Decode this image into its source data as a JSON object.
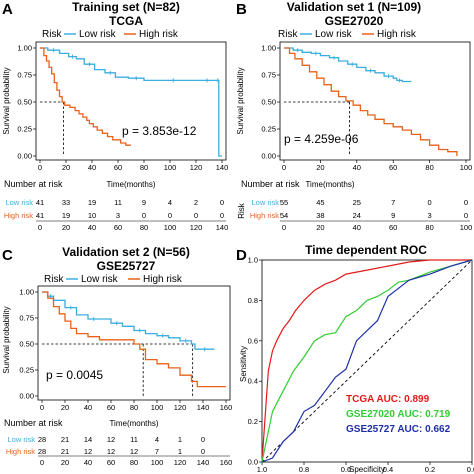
{
  "colors": {
    "low": "#3aaee0",
    "high": "#e8621c",
    "tcga": "#e31a1c",
    "gse27020": "#33cc33",
    "gse25727": "#1f2fa8"
  },
  "panels": [
    {
      "letter": "A",
      "title": "Training set (N=82)",
      "subtitle": "TCGA",
      "legend_title": "Risk",
      "legend_low": "Low risk",
      "legend_high": "High risk",
      "pvalue": "p = 3.853e-12",
      "ylabel": "Survival probability",
      "xlabel": "Time(months)",
      "number_at_risk_label": "Number at risk",
      "risk_row_labels": [
        "Low risk",
        "High risk"
      ],
      "risk_low": [
        "41",
        "33",
        "19",
        "11",
        "9",
        "4",
        "2",
        "0"
      ],
      "risk_high": [
        "41",
        "19",
        "10",
        "3",
        "0",
        "0",
        "0",
        "0"
      ]
    },
    {
      "letter": "B",
      "title": "Validation set 1 (N=109)",
      "subtitle": "GSE27020",
      "legend_title": "Risk",
      "legend_low": "Low risk",
      "legend_high": "High risk",
      "pvalue": "p = 4.259e-06",
      "ylabel": "Survival probability",
      "xlabel": "Time(months)",
      "number_at_risk_label": "Number at risk",
      "risk_axis_label": "Risk",
      "risk_row_labels": [
        "Low risk",
        "High risk"
      ],
      "risk_low": [
        "55",
        "45",
        "25",
        "7",
        "0",
        "0"
      ],
      "risk_high": [
        "54",
        "38",
        "24",
        "9",
        "3",
        "0"
      ]
    },
    {
      "letter": "C",
      "title": "Validation set 2 (N=56)",
      "subtitle": "GSE25727",
      "legend_title": "Risk",
      "legend_low": "Low risk",
      "legend_high": "High risk",
      "pvalue": "p = 0.0045",
      "ylabel": "Survival probability",
      "xlabel": "Time(months)",
      "number_at_risk_label": "Number at risk",
      "risk_row_labels": [
        "Low risk",
        "High risk"
      ],
      "risk_low": [
        "28",
        "21",
        "14",
        "12",
        "11",
        "4",
        "1",
        "0"
      ],
      "risk_high": [
        "28",
        "21",
        "12",
        "12",
        "12",
        "7",
        "1",
        "0"
      ]
    },
    {
      "letter": "D",
      "title": "Time dependent ROC",
      "ylabel": "Sensitivity",
      "xlabel": "Specificity",
      "auc_tcga": "TCGA AUC: 0.899",
      "auc_gse27020": "GSE27020 AUC: 0.719",
      "auc_gse25727": "GSE25727 AUC: 0.662"
    }
  ],
  "chart_data": [
    {
      "type": "line",
      "xlim": [
        0,
        140
      ],
      "ylim": [
        0,
        1
      ],
      "xticks": [
        "0",
        "20",
        "40",
        "60",
        "80",
        "100",
        "120",
        "140"
      ],
      "yticks": [
        "0.00",
        "0.25",
        "0.50",
        "0.75",
        "1.00"
      ],
      "risk_times": [
        0,
        20,
        40,
        60,
        80,
        100,
        120,
        140
      ],
      "median_high": 18,
      "series": [
        {
          "name": "Low risk",
          "x": [
            0,
            6,
            15,
            22,
            28,
            34,
            42,
            50,
            58,
            68,
            80,
            95,
            110,
            125,
            132,
            136,
            137.5,
            140
          ],
          "y": [
            1.0,
            0.98,
            0.95,
            0.92,
            0.9,
            0.85,
            0.8,
            0.77,
            0.73,
            0.72,
            0.7,
            0.7,
            0.7,
            0.7,
            0.7,
            0.7,
            0.0,
            0.0
          ]
        },
        {
          "name": "High risk",
          "x": [
            0,
            3,
            5,
            7,
            9,
            11,
            13,
            15,
            17,
            19,
            23,
            27,
            30,
            33,
            36,
            38,
            41,
            44,
            48,
            52,
            56,
            62,
            66,
            70
          ],
          "y": [
            1.0,
            0.93,
            0.88,
            0.82,
            0.76,
            0.68,
            0.61,
            0.55,
            0.5,
            0.47,
            0.45,
            0.42,
            0.39,
            0.36,
            0.33,
            0.3,
            0.27,
            0.24,
            0.21,
            0.18,
            0.15,
            0.12,
            0.1,
            0.1
          ]
        }
      ]
    },
    {
      "type": "line",
      "xlim": [
        0,
        100
      ],
      "ylim": [
        0,
        1
      ],
      "xticks": [
        "0",
        "20",
        "40",
        "60",
        "80",
        "100"
      ],
      "yticks": [
        "0.00",
        "0.25",
        "0.50",
        "0.75",
        "1.00"
      ],
      "risk_times": [
        0,
        20,
        40,
        60,
        80,
        100
      ],
      "median_high": 36,
      "series": [
        {
          "name": "Low risk",
          "x": [
            0,
            5,
            10,
            15,
            20,
            25,
            30,
            35,
            40,
            45,
            50,
            55,
            60,
            62,
            65,
            70
          ],
          "y": [
            1.0,
            0.98,
            0.96,
            0.95,
            0.93,
            0.91,
            0.88,
            0.85,
            0.82,
            0.79,
            0.77,
            0.74,
            0.72,
            0.7,
            0.69,
            0.69
          ]
        },
        {
          "name": "High risk",
          "x": [
            0,
            3,
            6,
            10,
            14,
            18,
            22,
            26,
            30,
            34,
            38,
            42,
            46,
            50,
            55,
            60,
            65,
            70,
            75,
            80,
            85,
            90,
            95
          ],
          "y": [
            1.0,
            0.95,
            0.9,
            0.84,
            0.78,
            0.72,
            0.66,
            0.6,
            0.55,
            0.51,
            0.47,
            0.42,
            0.38,
            0.34,
            0.3,
            0.27,
            0.24,
            0.2,
            0.15,
            0.1,
            0.06,
            0.04,
            0.0
          ]
        }
      ]
    },
    {
      "type": "line",
      "xlim": [
        0,
        160
      ],
      "ylim": [
        0,
        1
      ],
      "xticks": [
        "0",
        "20",
        "40",
        "60",
        "80",
        "100",
        "120",
        "140",
        "160"
      ],
      "yticks": [
        "0.00",
        "0.25",
        "0.50",
        "0.75",
        "1.00"
      ],
      "risk_times": [
        0,
        20,
        40,
        60,
        80,
        100,
        120,
        140
      ],
      "median_high": 88,
      "median_low": 131,
      "series": [
        {
          "name": "Low risk",
          "x": [
            0,
            5,
            10,
            20,
            30,
            40,
            50,
            60,
            70,
            80,
            90,
            100,
            110,
            120,
            130,
            133,
            150
          ],
          "y": [
            1.0,
            0.96,
            0.92,
            0.85,
            0.78,
            0.74,
            0.74,
            0.7,
            0.67,
            0.63,
            0.6,
            0.58,
            0.56,
            0.53,
            0.5,
            0.45,
            0.45
          ]
        },
        {
          "name": "High risk",
          "x": [
            0,
            5,
            10,
            15,
            20,
            25,
            30,
            40,
            50,
            60,
            70,
            80,
            85,
            90,
            100,
            110,
            120,
            130,
            135,
            160
          ],
          "y": [
            1.0,
            0.94,
            0.86,
            0.79,
            0.72,
            0.65,
            0.6,
            0.57,
            0.54,
            0.54,
            0.54,
            0.5,
            0.45,
            0.35,
            0.31,
            0.27,
            0.2,
            0.14,
            0.09,
            0.09
          ]
        }
      ]
    },
    {
      "type": "line",
      "xlim": [
        0,
        1
      ],
      "ylim": [
        0,
        1
      ],
      "xticks": [
        "1.0",
        "0.8",
        "0.6",
        "0.4",
        "0.2",
        "0.0"
      ],
      "yticks": [
        "0.0",
        "0.2",
        "0.4",
        "0.6",
        "0.8",
        "1.0"
      ],
      "series": [
        {
          "name": "TCGA",
          "x": [
            0,
            0.01,
            0.02,
            0.03,
            0.05,
            0.07,
            0.1,
            0.13,
            0.16,
            0.2,
            0.25,
            0.3,
            0.35,
            0.4,
            0.5,
            0.6,
            0.7,
            0.8,
            0.9,
            1.0
          ],
          "y": [
            0,
            0.15,
            0.3,
            0.45,
            0.55,
            0.6,
            0.66,
            0.7,
            0.75,
            0.8,
            0.85,
            0.88,
            0.9,
            0.93,
            0.95,
            0.97,
            0.99,
            1.0,
            1.0,
            1.0
          ]
        },
        {
          "name": "GSE27020",
          "x": [
            0,
            0.02,
            0.05,
            0.1,
            0.15,
            0.2,
            0.25,
            0.3,
            0.35,
            0.4,
            0.45,
            0.5,
            0.55,
            0.6,
            0.65,
            0.7,
            0.8,
            0.9,
            1.0
          ],
          "y": [
            0,
            0.1,
            0.25,
            0.35,
            0.45,
            0.52,
            0.6,
            0.63,
            0.64,
            0.72,
            0.75,
            0.8,
            0.82,
            0.85,
            0.89,
            0.9,
            0.94,
            0.97,
            1.0
          ]
        },
        {
          "name": "GSE25727",
          "x": [
            0,
            0.05,
            0.1,
            0.15,
            0.2,
            0.25,
            0.3,
            0.35,
            0.4,
            0.45,
            0.5,
            0.55,
            0.6,
            0.65,
            0.7,
            0.8,
            0.9,
            1.0
          ],
          "y": [
            0,
            0.02,
            0.1,
            0.15,
            0.25,
            0.28,
            0.35,
            0.42,
            0.46,
            0.6,
            0.65,
            0.7,
            0.82,
            0.86,
            0.9,
            0.93,
            0.97,
            1.0
          ]
        }
      ]
    }
  ]
}
